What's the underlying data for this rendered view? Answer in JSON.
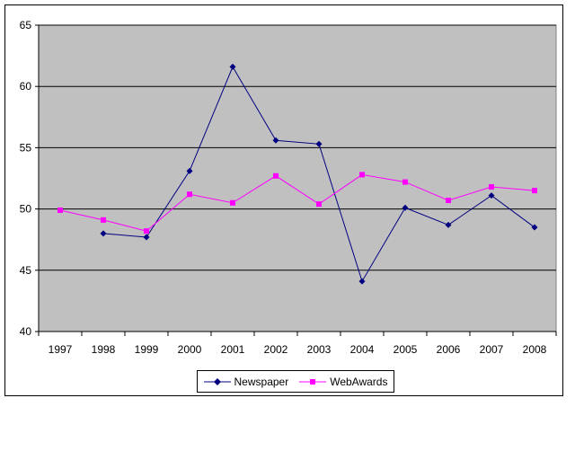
{
  "chart_data": {
    "type": "line",
    "title": "",
    "xlabel": "",
    "ylabel": "",
    "categories": [
      "1997",
      "1998",
      "1999",
      "2000",
      "2001",
      "2002",
      "2003",
      "2004",
      "2005",
      "2006",
      "2007",
      "2008"
    ],
    "ylim": [
      40,
      65
    ],
    "yticks": [
      40,
      45,
      50,
      55,
      60,
      65
    ],
    "grid": "horizontal",
    "legend_position": "bottom",
    "plot_background": "#c0c0c0",
    "series": [
      {
        "name": "Newspaper",
        "color": "#000080",
        "marker": "diamond",
        "values": [
          null,
          48.0,
          47.7,
          53.1,
          61.6,
          55.6,
          55.3,
          44.1,
          50.1,
          48.7,
          51.1,
          48.5
        ]
      },
      {
        "name": "WebAwards",
        "color": "#ff00ff",
        "marker": "square",
        "values": [
          49.9,
          49.1,
          48.2,
          51.2,
          50.5,
          52.7,
          50.4,
          52.8,
          52.2,
          50.7,
          51.8,
          51.5
        ]
      }
    ]
  }
}
